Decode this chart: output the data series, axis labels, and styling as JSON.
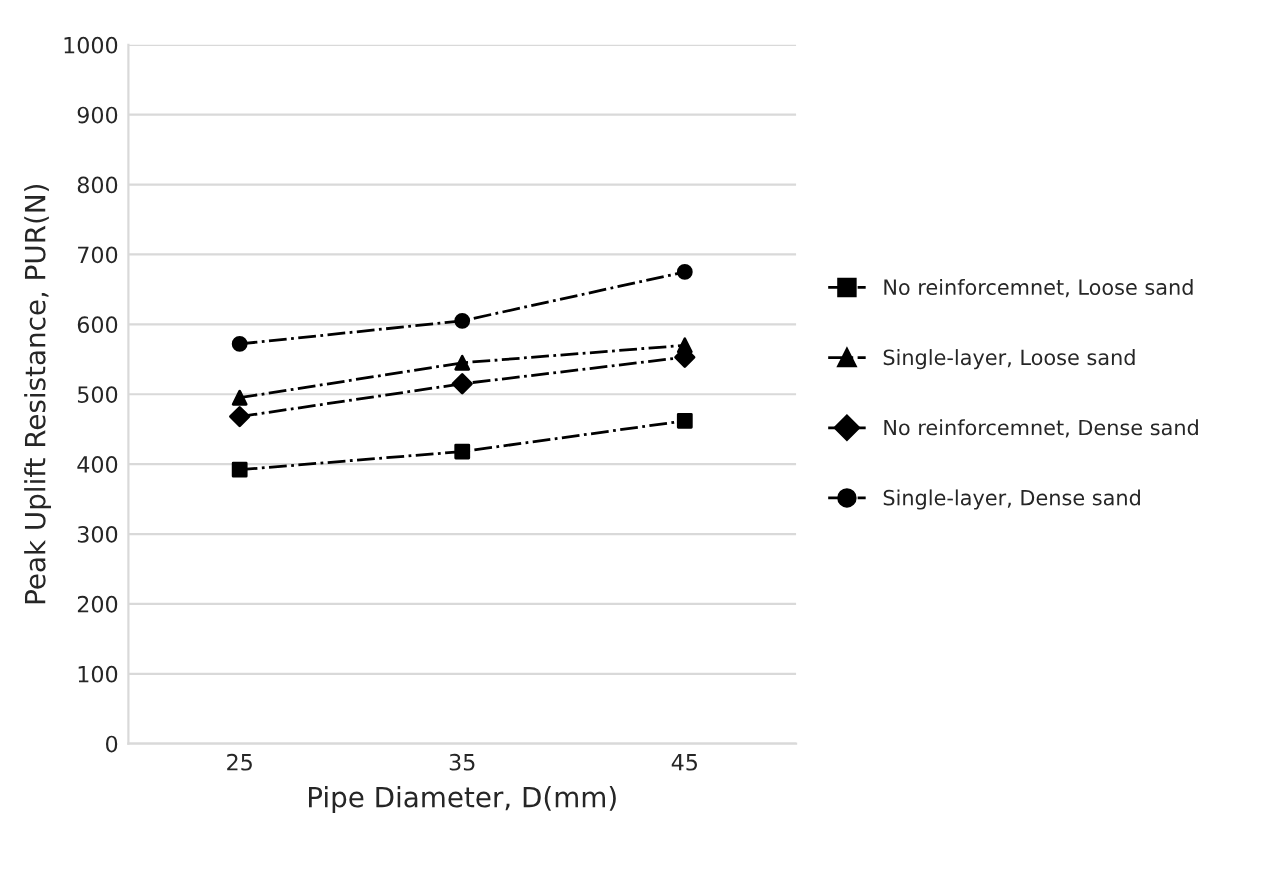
{
  "chart_data": {
    "type": "line",
    "xlabel": "Pipe Diameter, D(mm)",
    "ylabel": "Peak Uplift Resistance, PUR(N)",
    "categories": [
      "25",
      "35",
      "45"
    ],
    "series": [
      {
        "name": "No reinforcemnet, Loose sand",
        "color": "#000000",
        "marker": "square",
        "values": [
          392,
          418,
          462
        ]
      },
      {
        "name": "Single-layer, Loose sand",
        "color": "#000000",
        "marker": "triangle",
        "values": [
          495,
          545,
          570
        ]
      },
      {
        "name": "No reinforcemnet, Dense sand",
        "color": "#000000",
        "marker": "diamond",
        "values": [
          468,
          515,
          553
        ]
      },
      {
        "name": "Single-layer, Dense sand",
        "color": "#000000",
        "marker": "circle",
        "values": [
          572,
          605,
          675
        ]
      }
    ],
    "ylim": [
      0,
      1000
    ],
    "yticks": [
      0,
      100,
      200,
      300,
      400,
      500,
      600,
      700,
      800,
      900,
      1000
    ],
    "grid": "y",
    "legend": "right",
    "line_style": "dashed"
  }
}
